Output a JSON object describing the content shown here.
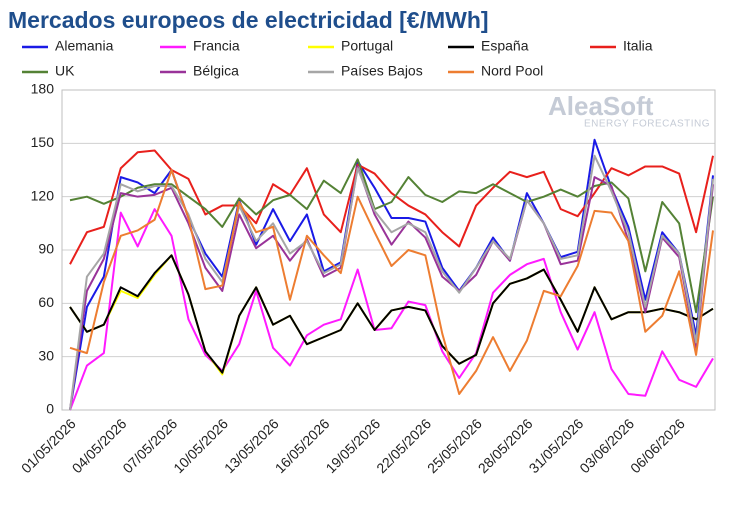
{
  "chart_data": {
    "type": "line",
    "title": "Mercados europeos de electricidad [€/MWh]",
    "watermark": [
      "AleaSoft",
      "ENERGY FORECASTING"
    ],
    "categories": [
      "01/05/2026",
      null,
      null,
      "04/05/2026",
      null,
      null,
      "07/05/2026",
      null,
      null,
      "10/05/2026",
      null,
      null,
      "13/05/2026",
      null,
      null,
      "16/05/2026",
      null,
      null,
      "19/05/2026",
      null,
      null,
      "22/05/2026",
      null,
      null,
      "25/05/2026",
      null,
      null,
      "28/05/2026",
      null,
      null,
      "31/05/2026",
      null,
      null,
      "03/06/2026",
      null,
      null,
      "06/06/2026",
      null,
      null
    ],
    "ylim": [
      0,
      180
    ],
    "yticks": [
      0,
      30,
      60,
      90,
      120,
      150,
      180
    ],
    "grid": true,
    "series": [
      {
        "name": "Alemania",
        "color": "#1a1ae6",
        "values": [
          0,
          58,
          75,
          131,
          128,
          122,
          135,
          108,
          88,
          75,
          118,
          93,
          113,
          95,
          110,
          78,
          83,
          140,
          125,
          108,
          108,
          106,
          80,
          67,
          80,
          97,
          84,
          122,
          105,
          86,
          89,
          152,
          125,
          103,
          62,
          100,
          88,
          42,
          132
        ]
      },
      {
        "name": "Francia",
        "color": "#ff1aff",
        "values": [
          0,
          25,
          32,
          111,
          92,
          113,
          98,
          51,
          31,
          22,
          37,
          67,
          35,
          25,
          42,
          48,
          51,
          79,
          45,
          46,
          61,
          59,
          33,
          18,
          32,
          66,
          76,
          82,
          85,
          55,
          34,
          55,
          23,
          9,
          8,
          33,
          17,
          13,
          29
        ]
      },
      {
        "name": "Portugal",
        "color": "#ffff00",
        "values": [
          58,
          44,
          48,
          67,
          63,
          76,
          87,
          65,
          33,
          20,
          53,
          69,
          48,
          53,
          37,
          41,
          45,
          60,
          45,
          56,
          58,
          56,
          36,
          26,
          31,
          60,
          71,
          74,
          79,
          62,
          44,
          69,
          51,
          55,
          55,
          57,
          55,
          51,
          57
        ]
      },
      {
        "name": "España",
        "color": "#000000",
        "values": [
          58,
          44,
          48,
          69,
          64,
          77,
          87,
          65,
          33,
          21,
          53,
          69,
          48,
          53,
          37,
          41,
          45,
          60,
          45,
          56,
          58,
          56,
          36,
          26,
          31,
          60,
          71,
          74,
          79,
          62,
          44,
          69,
          51,
          55,
          55,
          57,
          55,
          51,
          57
        ]
      },
      {
        "name": "Italia",
        "color": "#e8201c",
        "values": [
          82,
          100,
          103,
          136,
          145,
          146,
          135,
          130,
          110,
          115,
          115,
          105,
          127,
          121,
          136,
          110,
          100,
          138,
          133,
          122,
          115,
          110,
          100,
          92,
          115,
          125,
          134,
          131,
          134,
          113,
          109,
          122,
          136,
          132,
          137,
          137,
          133,
          100,
          143
        ]
      },
      {
        "name": "UK",
        "color": "#548235",
        "values": [
          118,
          120,
          116,
          120,
          125,
          127,
          127,
          120,
          113,
          103,
          119,
          110,
          118,
          121,
          113,
          129,
          122,
          141,
          113,
          117,
          131,
          121,
          117,
          123,
          122,
          127,
          122,
          117,
          120,
          124,
          120,
          126,
          128,
          119,
          78,
          117,
          105,
          55,
          120
        ]
      },
      {
        "name": "Bélgica",
        "color": "#993399",
        "values": [
          0,
          67,
          85,
          122,
          120,
          121,
          125,
          105,
          80,
          67,
          110,
          91,
          98,
          84,
          96,
          75,
          80,
          137,
          110,
          93,
          106,
          97,
          75,
          67,
          76,
          95,
          84,
          118,
          105,
          82,
          84,
          131,
          126,
          95,
          55,
          97,
          86,
          35,
          127
        ]
      },
      {
        "name": "Países Bajos",
        "color": "#a6a6a6",
        "values": [
          0,
          75,
          88,
          127,
          123,
          126,
          126,
          110,
          85,
          72,
          115,
          95,
          105,
          88,
          95,
          77,
          82,
          136,
          112,
          100,
          105,
          100,
          78,
          66,
          80,
          95,
          85,
          118,
          105,
          85,
          87,
          143,
          123,
          100,
          58,
          98,
          88,
          38,
          130
        ]
      },
      {
        "name": "Nord Pool",
        "color": "#ed7d31",
        "values": [
          35,
          32,
          72,
          98,
          101,
          107,
          135,
          108,
          68,
          70,
          117,
          100,
          103,
          62,
          98,
          87,
          77,
          120,
          100,
          81,
          90,
          87,
          43,
          9,
          22,
          41,
          22,
          39,
          67,
          64,
          81,
          112,
          111,
          95,
          44,
          53,
          78,
          31,
          101
        ]
      }
    ]
  }
}
